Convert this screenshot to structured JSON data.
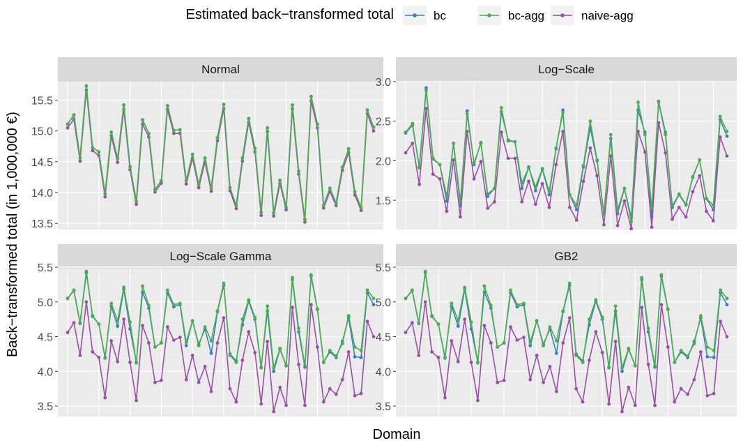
{
  "chart_data": {
    "type": "line",
    "legend_title": "Estimated back−transformed total",
    "legend_position": "top",
    "xlabel": "Domain",
    "ylabel": "Back−transformed total (in 1,000,000 €)",
    "colors": {
      "bc": "#3a7fc1",
      "bc-agg": "#4aaf4a",
      "naive-agg": "#9b4ea8"
    },
    "grid": true,
    "panels": [
      {
        "title": "Normal",
        "ylim": [
          13.4,
          15.8
        ],
        "yticks": [
          "13.5",
          "14.0",
          "14.5",
          "15.0",
          "15.5"
        ],
        "series": [
          {
            "name": "bc",
            "values": [
              15.11,
              15.26,
              14.56,
              15.73,
              14.73,
              14.66,
              13.98,
              14.98,
              14.55,
              15.42,
              14.42,
              13.86,
              15.18,
              14.96,
              14.05,
              14.19,
              15.41,
              15.01,
              15.02,
              14.19,
              14.62,
              14.13,
              14.56,
              14.07,
              14.89,
              15.43,
              14.08,
              13.79,
              14.56,
              15.2,
              14.72,
              13.68,
              15.05,
              13.67,
              14.2,
              13.76,
              15.42,
              14.35,
              13.56,
              15.56,
              15.11,
              13.79,
              14.07,
              13.83,
              14.41,
              14.71,
              14.01,
              13.75,
              15.34,
              15.06
            ]
          },
          {
            "name": "bc-agg",
            "values": [
              15.11,
              15.26,
              14.56,
              15.73,
              14.73,
              14.66,
              13.98,
              14.98,
              14.55,
              15.42,
              14.42,
              13.86,
              15.18,
              14.96,
              14.05,
              14.19,
              15.41,
              15.01,
              15.02,
              14.19,
              14.62,
              14.13,
              14.56,
              14.07,
              14.89,
              15.43,
              14.08,
              13.79,
              14.56,
              15.2,
              14.72,
              13.68,
              15.05,
              13.67,
              14.2,
              13.76,
              15.42,
              14.35,
              13.56,
              15.56,
              15.11,
              13.79,
              14.07,
              13.83,
              14.41,
              14.71,
              14.01,
              13.75,
              15.34,
              15.06
            ]
          },
          {
            "name": "naive-agg",
            "values": [
              15.05,
              15.19,
              14.51,
              15.66,
              14.68,
              14.6,
              13.93,
              14.92,
              14.49,
              15.35,
              14.37,
              13.81,
              15.11,
              14.9,
              14.01,
              14.15,
              15.35,
              14.96,
              14.96,
              14.14,
              14.56,
              14.08,
              14.5,
              14.02,
              14.84,
              15.36,
              14.03,
              13.74,
              14.51,
              15.14,
              14.66,
              13.63,
              14.99,
              13.62,
              14.15,
              13.72,
              15.36,
              14.3,
              13.52,
              15.49,
              15.05,
              13.75,
              14.02,
              13.79,
              14.36,
              14.65,
              13.96,
              13.71,
              15.28,
              15.0
            ]
          }
        ]
      },
      {
        "title": "Log−Scale",
        "ylim": [
          1.13,
          3.0
        ],
        "yticks": [
          "1.5",
          "2.0",
          "2.5",
          "3.0"
        ],
        "series": [
          {
            "name": "bc",
            "values": [
              2.35,
              2.45,
              1.92,
              2.92,
              2.03,
              1.95,
              1.49,
              2.22,
              1.43,
              2.63,
              1.95,
              2.23,
              1.55,
              1.65,
              2.62,
              2.26,
              2.24,
              1.65,
              1.92,
              1.62,
              1.89,
              1.57,
              2.15,
              2.64,
              1.57,
              1.38,
              1.92,
              2.42,
              2.0,
              1.33,
              2.28,
              1.33,
              1.65,
              1.28,
              2.64,
              2.36,
              1.29,
              2.75,
              2.36,
              1.41,
              1.57,
              1.44,
              1.79,
              2.01,
              1.52,
              1.38,
              2.52,
              2.31
            ]
          },
          {
            "name": "bc-agg",
            "values": [
              2.36,
              2.47,
              1.91,
              2.89,
              2.02,
              1.95,
              1.55,
              2.22,
              1.49,
              2.59,
              1.97,
              2.22,
              1.58,
              1.65,
              2.67,
              2.25,
              2.24,
              1.72,
              1.91,
              1.67,
              1.9,
              1.61,
              2.16,
              2.61,
              1.57,
              1.44,
              1.94,
              2.5,
              2.01,
              1.32,
              2.33,
              1.38,
              1.65,
              1.23,
              2.74,
              2.33,
              1.4,
              2.74,
              2.33,
              1.43,
              1.58,
              1.45,
              1.8,
              2.01,
              1.52,
              1.44,
              2.56,
              2.37
            ]
          },
          {
            "name": "naive-agg",
            "values": [
              2.1,
              2.22,
              1.7,
              2.66,
              1.83,
              1.77,
              1.36,
              2.01,
              1.29,
              2.37,
              1.77,
              1.99,
              1.4,
              1.48,
              2.36,
              2.03,
              2.03,
              1.48,
              1.74,
              1.45,
              1.71,
              1.41,
              1.95,
              2.37,
              1.41,
              1.25,
              1.74,
              2.16,
              1.81,
              1.19,
              2.06,
              1.18,
              1.49,
              1.14,
              2.37,
              2.11,
              1.16,
              2.48,
              2.1,
              1.26,
              1.41,
              1.29,
              1.61,
              1.81,
              1.36,
              1.24,
              2.3,
              2.06
            ]
          }
        ]
      },
      {
        "title": "Log−Scale Gamma",
        "ylim": [
          3.35,
          5.48
        ],
        "yticks": [
          "3.5",
          "4.0",
          "4.5",
          "5.0",
          "5.5"
        ],
        "series": [
          {
            "name": "bc",
            "values": [
              5.05,
              5.16,
              4.69,
              5.42,
              4.8,
              4.68,
              4.2,
              4.94,
              4.65,
              5.18,
              4.61,
              4.13,
              5.14,
              4.91,
              4.35,
              4.41,
              5.13,
              4.93,
              4.96,
              4.37,
              4.73,
              4.39,
              4.61,
              4.26,
              4.86,
              5.24,
              4.25,
              4.15,
              4.67,
              5.01,
              4.75,
              4.06,
              4.87,
              4.0,
              4.32,
              4.08,
              5.32,
              4.57,
              4.06,
              5.37,
              4.89,
              4.13,
              4.28,
              4.2,
              4.43,
              4.77,
              4.21,
              4.2,
              5.13,
              4.96
            ]
          },
          {
            "name": "bc-agg",
            "values": [
              5.05,
              5.17,
              4.7,
              5.44,
              4.79,
              4.68,
              4.19,
              4.98,
              4.73,
              5.21,
              4.71,
              4.12,
              5.23,
              4.95,
              4.35,
              4.41,
              5.17,
              4.96,
              4.98,
              4.42,
              4.73,
              4.37,
              4.64,
              4.44,
              4.87,
              5.27,
              4.23,
              4.13,
              4.75,
              5.03,
              4.78,
              4.05,
              4.94,
              4.05,
              4.33,
              4.08,
              5.35,
              4.62,
              4.08,
              5.39,
              4.9,
              4.13,
              4.3,
              4.22,
              4.4,
              4.8,
              4.35,
              4.3,
              5.17,
              5.05
            ]
          },
          {
            "name": "naive-agg",
            "values": [
              4.56,
              4.7,
              4.23,
              5.0,
              4.28,
              4.2,
              3.62,
              4.44,
              4.14,
              4.75,
              4.13,
              3.58,
              4.66,
              4.41,
              3.84,
              3.87,
              4.64,
              4.45,
              4.49,
              3.88,
              4.23,
              3.84,
              4.07,
              3.71,
              4.41,
              4.77,
              3.75,
              3.56,
              4.16,
              4.57,
              4.27,
              3.53,
              4.43,
              3.42,
              3.77,
              3.51,
              4.92,
              4.1,
              3.51,
              4.96,
              4.35,
              3.56,
              3.75,
              3.67,
              3.88,
              4.28,
              3.65,
              3.68,
              4.72,
              4.5
            ]
          }
        ]
      },
      {
        "title": "GB2",
        "ylim": [
          3.35,
          5.48
        ],
        "yticks": [
          "3.5",
          "4.0",
          "4.5",
          "5.0",
          "5.5"
        ],
        "series": [
          {
            "name": "bc",
            "values": [
              5.05,
              5.16,
              4.69,
              5.42,
              4.8,
              4.68,
              4.2,
              4.94,
              4.65,
              5.18,
              4.61,
              4.13,
              5.14,
              4.91,
              4.35,
              4.41,
              5.13,
              4.93,
              4.96,
              4.37,
              4.73,
              4.39,
              4.61,
              4.26,
              4.86,
              5.24,
              4.25,
              4.15,
              4.67,
              5.01,
              4.75,
              4.06,
              4.87,
              4.0,
              4.32,
              4.08,
              5.32,
              4.57,
              4.06,
              5.37,
              4.89,
              4.13,
              4.28,
              4.2,
              4.43,
              4.77,
              4.21,
              4.2,
              5.13,
              4.96
            ]
          },
          {
            "name": "bc-agg",
            "values": [
              5.05,
              5.17,
              4.7,
              5.44,
              4.79,
              4.68,
              4.19,
              4.98,
              4.73,
              5.21,
              4.71,
              4.12,
              5.23,
              4.95,
              4.35,
              4.41,
              5.17,
              4.96,
              4.98,
              4.42,
              4.73,
              4.37,
              4.64,
              4.44,
              4.87,
              5.27,
              4.23,
              4.13,
              4.75,
              5.03,
              4.78,
              4.05,
              4.94,
              4.05,
              4.33,
              4.08,
              5.35,
              4.62,
              4.08,
              5.39,
              4.9,
              4.13,
              4.3,
              4.22,
              4.4,
              4.8,
              4.35,
              4.3,
              5.17,
              5.05
            ]
          },
          {
            "name": "naive-agg",
            "values": [
              4.56,
              4.7,
              4.23,
              5.0,
              4.28,
              4.2,
              3.62,
              4.44,
              4.14,
              4.75,
              4.13,
              3.58,
              4.66,
              4.41,
              3.84,
              3.87,
              4.64,
              4.45,
              4.49,
              3.88,
              4.23,
              3.84,
              4.07,
              3.71,
              4.41,
              4.77,
              3.75,
              3.56,
              4.16,
              4.57,
              4.27,
              3.53,
              4.43,
              3.42,
              3.77,
              3.51,
              4.92,
              4.1,
              3.51,
              4.96,
              4.35,
              3.56,
              3.75,
              3.67,
              3.88,
              4.28,
              3.65,
              3.68,
              4.72,
              4.5
            ]
          }
        ]
      }
    ]
  }
}
